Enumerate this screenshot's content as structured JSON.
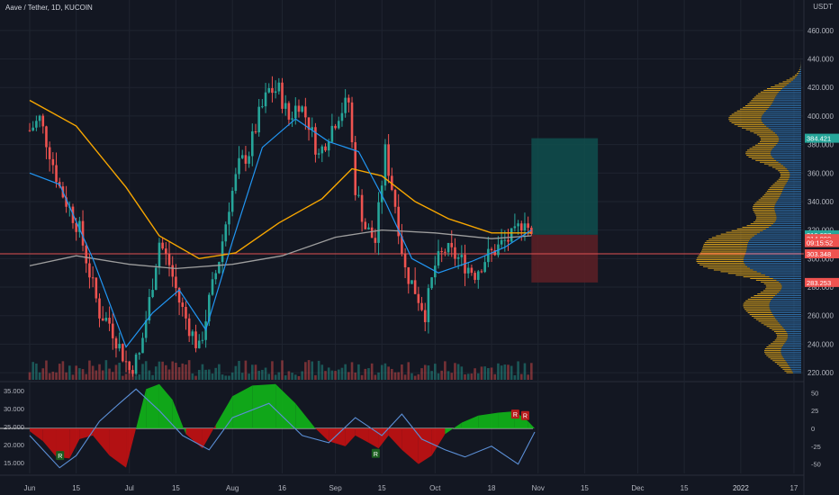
{
  "header": {
    "pair": "Aave / Tether",
    "interval": "1D",
    "exchange": "KUCOIN",
    "currency": "USDT"
  },
  "colors": {
    "background": "#131722",
    "grid": "#1f2430",
    "up_candle": "#26a69a",
    "down_candle": "#ef5350",
    "ma_fast": "#2196f3",
    "ma_mid": "#f7a600",
    "ma_slow": "#9e9e9e",
    "volume_profile_up": "#2f6fa8",
    "volume_profile_down": "#d9a21c",
    "osc_green": "#10c018",
    "osc_red": "#d01010",
    "osc_line": "#5b8fd6",
    "target_zone": "#0f4f4d",
    "stop_zone": "#5a1f26",
    "hline_red": "#e05252"
  },
  "chart_data": [
    {
      "type": "candlestick",
      "title": "Aave / Tether, 1D, KUCOIN",
      "ylim": [
        215,
        470
      ],
      "y_ticks": [
        220,
        240,
        260,
        280,
        300,
        320,
        340,
        360,
        380,
        400,
        420,
        440,
        460
      ],
      "y_tick_labels": [
        "220.000",
        "240.000",
        "260.000",
        "280.000",
        "300.000",
        "320.000",
        "340.000",
        "360.000",
        "380.000",
        "400.000",
        "420.000",
        "440.000",
        "460.000"
      ],
      "x_start": "2021-06-01",
      "x_end": "2022-01-20",
      "x_ticks": [
        {
          "date": "2021-06-01",
          "label": "Jun"
        },
        {
          "date": "2021-06-15",
          "label": "15"
        },
        {
          "date": "2021-07-01",
          "label": "Jul"
        },
        {
          "date": "2021-07-15",
          "label": "15"
        },
        {
          "date": "2021-08-01",
          "label": "Aug"
        },
        {
          "date": "2021-08-16",
          "label": "16"
        },
        {
          "date": "2021-09-01",
          "label": "Sep"
        },
        {
          "date": "2021-09-15",
          "label": "15"
        },
        {
          "date": "2021-10-01",
          "label": "Oct"
        },
        {
          "date": "2021-10-18",
          "label": "18"
        },
        {
          "date": "2021-11-01",
          "label": "Nov"
        },
        {
          "date": "2021-11-15",
          "label": "15"
        },
        {
          "date": "2021-12-01",
          "label": "Dec"
        },
        {
          "date": "2021-12-15",
          "label": "15"
        },
        {
          "date": "2022-01-01",
          "label": "2022"
        },
        {
          "date": "2022-01-17",
          "label": "17"
        }
      ],
      "close_series": [
        {
          "date": "2021-06-01",
          "value": 390
        },
        {
          "date": "2021-06-04",
          "value": 398
        },
        {
          "date": "2021-06-07",
          "value": 375
        },
        {
          "date": "2021-06-10",
          "value": 350
        },
        {
          "date": "2021-06-13",
          "value": 335
        },
        {
          "date": "2021-06-16",
          "value": 320
        },
        {
          "date": "2021-06-19",
          "value": 290
        },
        {
          "date": "2021-06-22",
          "value": 262
        },
        {
          "date": "2021-06-25",
          "value": 255
        },
        {
          "date": "2021-06-28",
          "value": 238
        },
        {
          "date": "2021-07-01",
          "value": 222
        },
        {
          "date": "2021-07-04",
          "value": 232
        },
        {
          "date": "2021-07-07",
          "value": 270
        },
        {
          "date": "2021-07-10",
          "value": 312
        },
        {
          "date": "2021-07-13",
          "value": 296
        },
        {
          "date": "2021-07-16",
          "value": 270
        },
        {
          "date": "2021-07-19",
          "value": 252
        },
        {
          "date": "2021-07-22",
          "value": 236
        },
        {
          "date": "2021-07-25",
          "value": 270
        },
        {
          "date": "2021-07-28",
          "value": 300
        },
        {
          "date": "2021-07-31",
          "value": 338
        },
        {
          "date": "2021-08-03",
          "value": 365
        },
        {
          "date": "2021-08-06",
          "value": 375
        },
        {
          "date": "2021-08-09",
          "value": 400
        },
        {
          "date": "2021-08-12",
          "value": 418
        },
        {
          "date": "2021-08-15",
          "value": 418
        },
        {
          "date": "2021-08-18",
          "value": 398
        },
        {
          "date": "2021-08-21",
          "value": 410
        },
        {
          "date": "2021-08-24",
          "value": 395
        },
        {
          "date": "2021-08-27",
          "value": 372
        },
        {
          "date": "2021-08-30",
          "value": 388
        },
        {
          "date": "2021-09-02",
          "value": 402
        },
        {
          "date": "2021-09-05",
          "value": 410
        },
        {
          "date": "2021-09-07",
          "value": 350
        },
        {
          "date": "2021-09-10",
          "value": 322
        },
        {
          "date": "2021-09-13",
          "value": 312
        },
        {
          "date": "2021-09-16",
          "value": 375
        },
        {
          "date": "2021-09-19",
          "value": 338
        },
        {
          "date": "2021-09-22",
          "value": 292
        },
        {
          "date": "2021-09-25",
          "value": 278
        },
        {
          "date": "2021-09-28",
          "value": 262
        },
        {
          "date": "2021-10-01",
          "value": 295
        },
        {
          "date": "2021-10-04",
          "value": 306
        },
        {
          "date": "2021-10-07",
          "value": 302
        },
        {
          "date": "2021-10-10",
          "value": 296
        },
        {
          "date": "2021-10-13",
          "value": 290
        },
        {
          "date": "2021-10-16",
          "value": 300
        },
        {
          "date": "2021-10-19",
          "value": 306
        },
        {
          "date": "2021-10-22",
          "value": 312
        },
        {
          "date": "2021-10-25",
          "value": 316
        },
        {
          "date": "2021-10-28",
          "value": 330
        },
        {
          "date": "2021-10-30",
          "value": 314
        }
      ],
      "ma_fast": [
        {
          "date": "2021-06-01",
          "value": 360
        },
        {
          "date": "2021-06-10",
          "value": 352
        },
        {
          "date": "2021-06-20",
          "value": 300
        },
        {
          "date": "2021-06-30",
          "value": 238
        },
        {
          "date": "2021-07-08",
          "value": 262
        },
        {
          "date": "2021-07-16",
          "value": 278
        },
        {
          "date": "2021-07-24",
          "value": 250
        },
        {
          "date": "2021-08-01",
          "value": 312
        },
        {
          "date": "2021-08-10",
          "value": 378
        },
        {
          "date": "2021-08-20",
          "value": 398
        },
        {
          "date": "2021-08-30",
          "value": 382
        },
        {
          "date": "2021-09-08",
          "value": 375
        },
        {
          "date": "2021-09-16",
          "value": 340
        },
        {
          "date": "2021-09-24",
          "value": 300
        },
        {
          "date": "2021-10-02",
          "value": 290
        },
        {
          "date": "2021-10-12",
          "value": 298
        },
        {
          "date": "2021-10-22",
          "value": 308
        },
        {
          "date": "2021-10-30",
          "value": 320
        }
      ],
      "ma_mid": [
        {
          "date": "2021-06-01",
          "value": 411
        },
        {
          "date": "2021-06-15",
          "value": 393
        },
        {
          "date": "2021-06-30",
          "value": 350
        },
        {
          "date": "2021-07-10",
          "value": 316
        },
        {
          "date": "2021-07-22",
          "value": 300
        },
        {
          "date": "2021-08-02",
          "value": 304
        },
        {
          "date": "2021-08-15",
          "value": 325
        },
        {
          "date": "2021-08-28",
          "value": 342
        },
        {
          "date": "2021-09-06",
          "value": 363
        },
        {
          "date": "2021-09-15",
          "value": 358
        },
        {
          "date": "2021-09-25",
          "value": 340
        },
        {
          "date": "2021-10-05",
          "value": 328
        },
        {
          "date": "2021-10-18",
          "value": 318
        },
        {
          "date": "2021-10-30",
          "value": 318
        }
      ],
      "ma_slow": [
        {
          "date": "2021-06-01",
          "value": 295
        },
        {
          "date": "2021-06-15",
          "value": 302
        },
        {
          "date": "2021-07-01",
          "value": 296
        },
        {
          "date": "2021-07-15",
          "value": 293
        },
        {
          "date": "2021-08-01",
          "value": 296
        },
        {
          "date": "2021-08-16",
          "value": 302
        },
        {
          "date": "2021-09-01",
          "value": 315
        },
        {
          "date": "2021-09-15",
          "value": 320
        },
        {
          "date": "2021-10-01",
          "value": 318
        },
        {
          "date": "2021-10-18",
          "value": 314
        },
        {
          "date": "2021-10-30",
          "value": 316
        }
      ],
      "horizontal_line": 303.348,
      "long_position": {
        "start": "2021-10-30",
        "end": "2021-11-19",
        "entry": 316.687,
        "target": 384.421,
        "stop": 283.253
      },
      "price_labels": [
        {
          "value": 384.421,
          "text": "384.421",
          "color": "#26a69a"
        },
        {
          "value": 316.687,
          "text": "316.687",
          "color": "#26a69a"
        },
        {
          "value": 314.0,
          "text": "314.000",
          "color": "#ef5350"
        },
        {
          "value": 311.2,
          "text": "09:15:52",
          "color": "#ef5350"
        },
        {
          "value": 303.348,
          "text": "303.348",
          "color": "#ef5350"
        },
        {
          "value": 283.253,
          "text": "283.253",
          "color": "#ef5350"
        }
      ]
    },
    {
      "type": "area",
      "title": "oscillator",
      "left_ticks": [
        "35.000",
        "30.000",
        "25.000",
        "20.000",
        "15.000"
      ],
      "right_ticks": [
        "50",
        "25",
        "0",
        "-25",
        "-50"
      ],
      "right_range": [
        -63,
        63
      ],
      "histogram": [
        {
          "date": "2021-06-01",
          "value": -4
        },
        {
          "date": "2021-06-05",
          "value": -18
        },
        {
          "date": "2021-06-09",
          "value": -40
        },
        {
          "date": "2021-06-13",
          "value": -42
        },
        {
          "date": "2021-06-16",
          "value": -15
        },
        {
          "date": "2021-06-20",
          "value": -10
        },
        {
          "date": "2021-06-25",
          "value": -38
        },
        {
          "date": "2021-06-30",
          "value": -55
        },
        {
          "date": "2021-07-03",
          "value": 0
        },
        {
          "date": "2021-07-06",
          "value": 55
        },
        {
          "date": "2021-07-10",
          "value": 62
        },
        {
          "date": "2021-07-14",
          "value": 40
        },
        {
          "date": "2021-07-18",
          "value": -8
        },
        {
          "date": "2021-07-23",
          "value": -28
        },
        {
          "date": "2021-07-27",
          "value": 5
        },
        {
          "date": "2021-08-01",
          "value": 45
        },
        {
          "date": "2021-08-07",
          "value": 60
        },
        {
          "date": "2021-08-14",
          "value": 62
        },
        {
          "date": "2021-08-20",
          "value": 35
        },
        {
          "date": "2021-08-26",
          "value": 0
        },
        {
          "date": "2021-08-30",
          "value": -18
        },
        {
          "date": "2021-09-04",
          "value": -25
        },
        {
          "date": "2021-09-07",
          "value": -10
        },
        {
          "date": "2021-09-11",
          "value": -20
        },
        {
          "date": "2021-09-14",
          "value": -28
        },
        {
          "date": "2021-09-17",
          "value": -10
        },
        {
          "date": "2021-09-21",
          "value": -30
        },
        {
          "date": "2021-09-26",
          "value": -50
        },
        {
          "date": "2021-09-30",
          "value": -38
        },
        {
          "date": "2021-10-04",
          "value": -8
        },
        {
          "date": "2021-10-09",
          "value": 8
        },
        {
          "date": "2021-10-14",
          "value": 18
        },
        {
          "date": "2021-10-20",
          "value": 22
        },
        {
          "date": "2021-10-25",
          "value": 24
        },
        {
          "date": "2021-10-29",
          "value": 10
        },
        {
          "date": "2021-10-31",
          "value": 0
        }
      ],
      "line": [
        {
          "date": "2021-06-01",
          "value": -10
        },
        {
          "date": "2021-06-10",
          "value": -55
        },
        {
          "date": "2021-06-15",
          "value": -38
        },
        {
          "date": "2021-06-22",
          "value": 10
        },
        {
          "date": "2021-06-28",
          "value": 35
        },
        {
          "date": "2021-07-03",
          "value": 55
        },
        {
          "date": "2021-07-10",
          "value": 25
        },
        {
          "date": "2021-07-17",
          "value": -10
        },
        {
          "date": "2021-07-25",
          "value": -30
        },
        {
          "date": "2021-08-01",
          "value": 15
        },
        {
          "date": "2021-08-12",
          "value": 35
        },
        {
          "date": "2021-08-22",
          "value": -10
        },
        {
          "date": "2021-08-30",
          "value": -20
        },
        {
          "date": "2021-09-07",
          "value": 15
        },
        {
          "date": "2021-09-15",
          "value": -10
        },
        {
          "date": "2021-09-21",
          "value": 20
        },
        {
          "date": "2021-09-27",
          "value": -15
        },
        {
          "date": "2021-10-04",
          "value": -30
        },
        {
          "date": "2021-10-10",
          "value": -40
        },
        {
          "date": "2021-10-18",
          "value": -25
        },
        {
          "date": "2021-10-26",
          "value": -50
        },
        {
          "date": "2021-10-31",
          "value": -5
        }
      ],
      "signals": [
        {
          "date": "2021-06-10",
          "value": -38,
          "text": "R",
          "bg": "#1b5e20"
        },
        {
          "date": "2021-09-13",
          "value": -35,
          "text": "R",
          "bg": "#1b5e20"
        },
        {
          "date": "2021-10-25",
          "value": 20,
          "text": "R",
          "bg": "#b71c1c"
        },
        {
          "date": "2021-10-28",
          "value": 18,
          "text": "R",
          "bg": "#b71c1c"
        }
      ]
    }
  ]
}
